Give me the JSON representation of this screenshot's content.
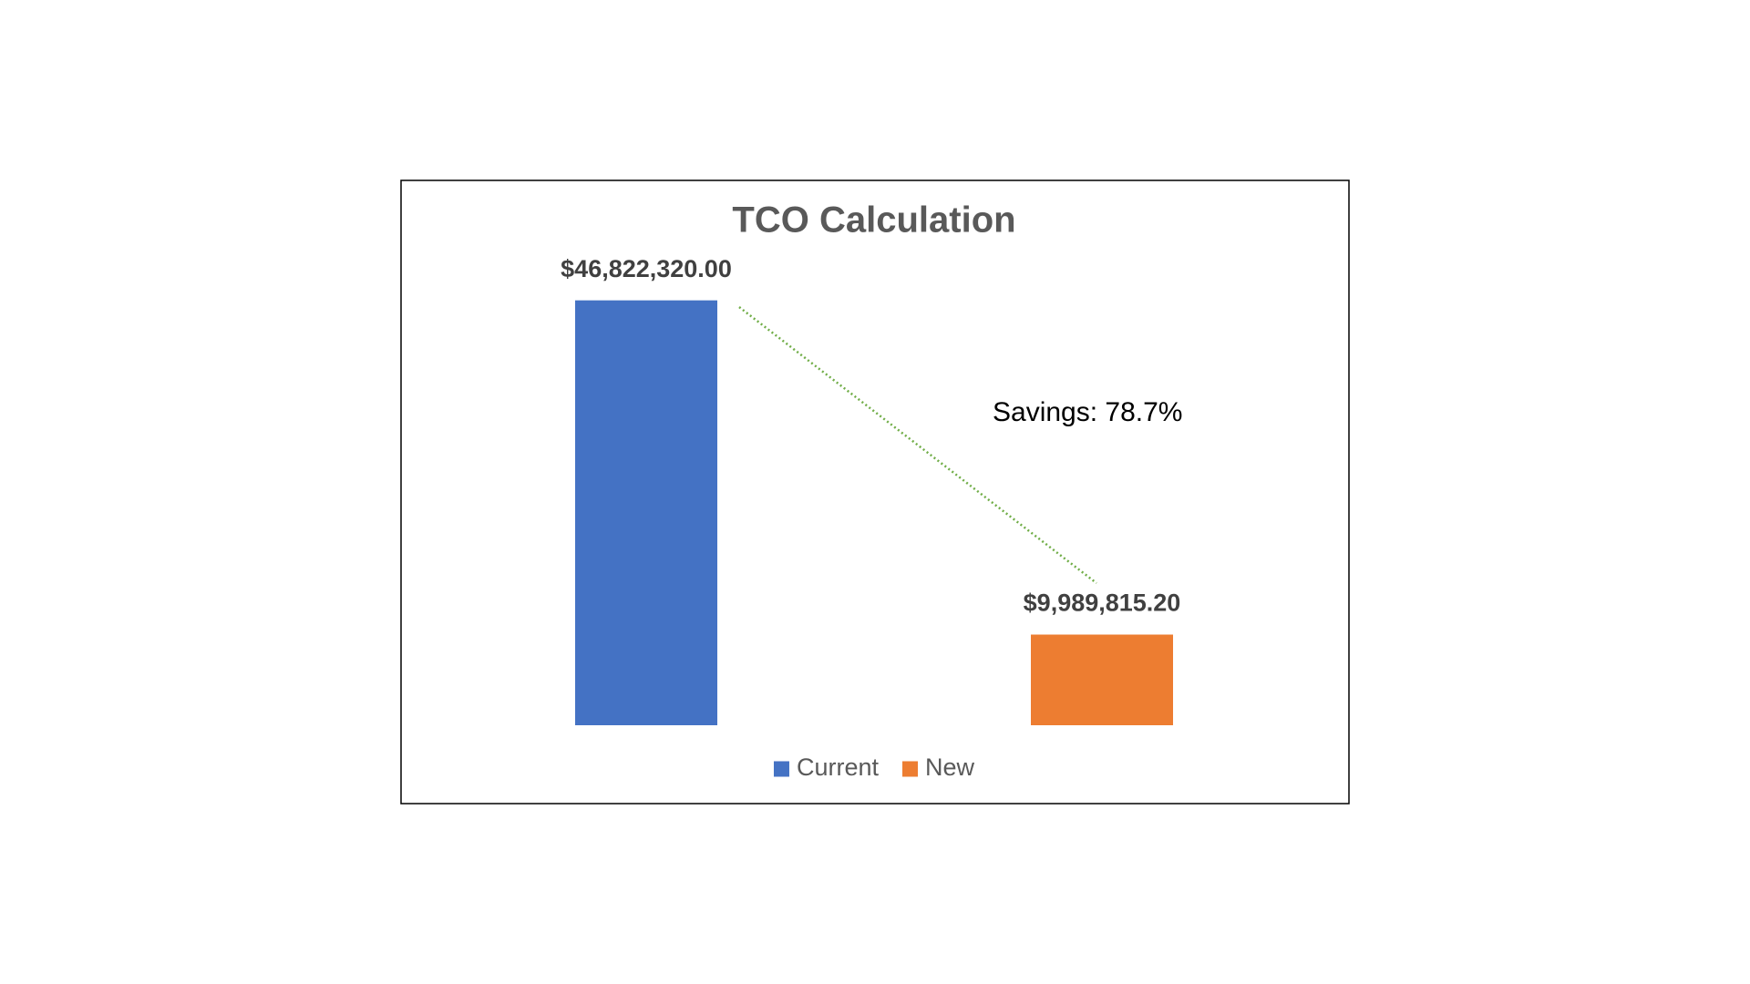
{
  "chart_data": {
    "type": "bar",
    "title": "TCO Calculation",
    "categories": [
      null
    ],
    "series": [
      {
        "name": "Current",
        "color": "#4472c4",
        "values": [
          46822320.0
        ],
        "value_labels": [
          "$46,822,320.00"
        ]
      },
      {
        "name": "New",
        "color": "#ed7d31",
        "values": [
          9989815.2
        ],
        "value_labels": [
          "$9,989,815.20"
        ]
      }
    ],
    "ylim": [
      0,
      50000000
    ],
    "annotations": [
      "Savings: 78.7%"
    ],
    "legend": "bottom"
  }
}
